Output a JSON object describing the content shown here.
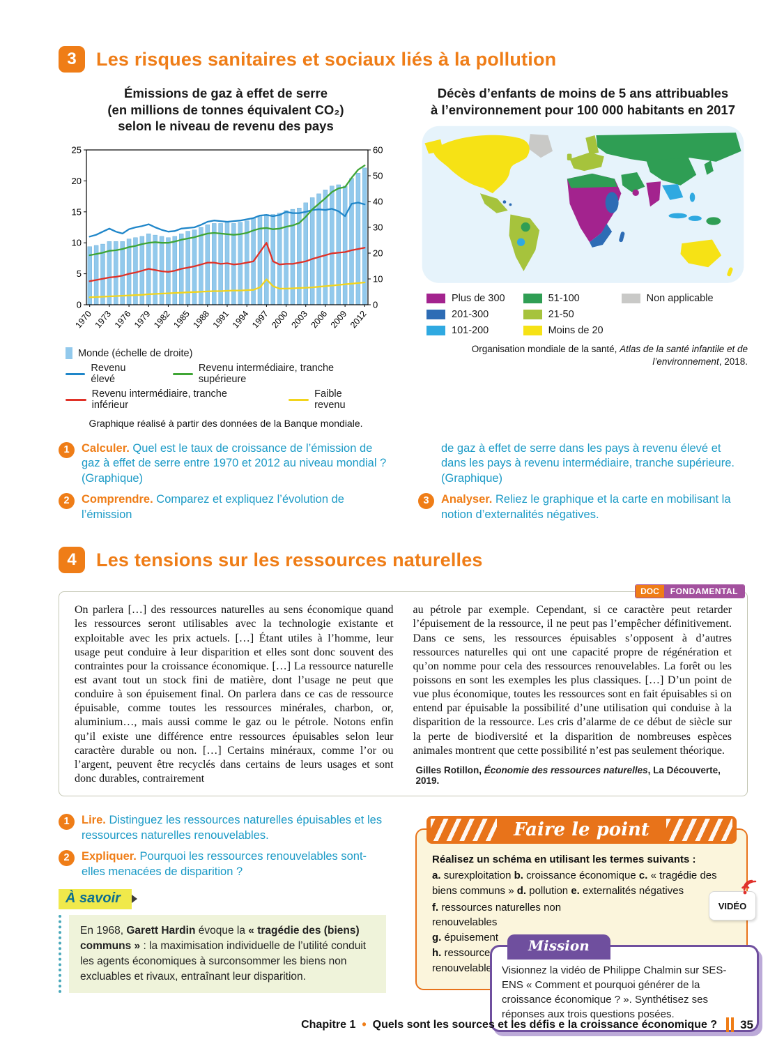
{
  "section3": {
    "badge": "3",
    "title": "Les risques sanitaires et sociaux liés à la pollution",
    "chart": {
      "title_line1": "Émissions de gaz à effet de serre",
      "title_line2": "(en millions de tonnes équivalent CO₂)",
      "title_line3": "selon le niveau de revenu des pays",
      "caption": "Graphique réalisé à partir des données de la Banque mondiale."
    },
    "map": {
      "title_line1": "Décès d’enfants de moins de 5 ans attribuables",
      "title_line2": "à l’environnement pour 100 000 habitants en 2017",
      "legend": [
        {
          "label": "Plus de 300",
          "color": "#a3238e"
        },
        {
          "label": "201-300",
          "color": "#2d6cb5"
        },
        {
          "label": "101-200",
          "color": "#2fa9e1"
        },
        {
          "label": "51-100",
          "color": "#2f9e54"
        },
        {
          "label": "21-50",
          "color": "#a6c33c"
        },
        {
          "label": "Moins de 20",
          "color": "#f6e215"
        },
        {
          "label": "Non applicable",
          "color": "#c9c9c7"
        }
      ],
      "caption_part1": "Organisation mondiale de la santé, ",
      "caption_italic": "Atlas de la santé infantile et de l’environnement",
      "caption_part2": ", 2018."
    },
    "questions": {
      "q1": {
        "n": "1",
        "verb": "Calculer.",
        "text": "Quel est le taux de croissance de l’émission de gaz à effet de serre entre 1970 et 2012 au niveau mondial ? (Graphique)"
      },
      "q2": {
        "n": "2",
        "verb": "Comprendre.",
        "text": "Comparez et expliquez l’évolution de l’émission"
      },
      "q2_continuation": "de gaz à effet de serre dans les pays à revenu élevé et dans les pays à revenu intermédiaire, tranche supérieure. (Graphique)",
      "q3": {
        "n": "3",
        "verb": "Analyser.",
        "text": "Reliez le graphique et la carte en mobilisant la notion d’externalités négatives."
      }
    }
  },
  "section4": {
    "badge": "4",
    "title": "Les tensions sur les ressources naturelles",
    "doc_badge": {
      "doc": "DOC",
      "fondamental": "FONDAMENTAL"
    },
    "doc": {
      "col1": "On parlera […] des ressources naturelles au sens économique quand les ressources seront utilisables avec la technologie existante et exploitable avec les prix actuels. […] Étant utiles à l’homme, leur usage peut conduire à leur disparition et elles sont donc souvent des contraintes pour la croissance économique. […] La ressource naturelle est avant tout un stock fini de matière, dont l’usage ne peut que conduire à son épuisement final. On parlera dans ce cas de ressource épuisable, comme toutes les ressources minérales, charbon, or, aluminium…, mais aussi comme le gaz ou le pétrole. Notons enfin qu’il existe une différence entre ressources épuisables selon leur caractère durable ou non. […] Certains minéraux, comme l’or ou l’argent, peuvent être recyclés dans certains de leurs usages et sont donc durables, contrairement",
      "col2": "au pétrole par exemple. Cependant, si ce caractère peut retarder l’épuisement de la ressource, il ne peut pas l’empêcher définitivement. Dans ce sens, les ressources épuisables s’opposent à d’autres ressources naturelles qui ont une capacité propre de régénération et qu’on nomme pour cela des ressources renouvelables. La forêt ou les poissons en sont les exemples les plus classiques. […] D’un point de vue plus économique, toutes les ressources sont en fait épuisables si on entend par épuisable la possibilité d’une utilisation qui conduise à la disparition de la ressource. Les cris d’alarme de ce début de siècle sur la perte de biodiversité et la disparition de nombreuses espèces animales montrent que cette possibilité n’est pas seulement théorique.",
      "source_author": "Gilles Rotillon, ",
      "source_title": "Économie des ressources naturelles",
      "source_end": ", La Découverte, 2019."
    },
    "questions": {
      "q1": {
        "n": "1",
        "verb": "Lire.",
        "text": "Distinguez les ressources naturelles épuisables et les ressources naturelles renouvelables."
      },
      "q2": {
        "n": "2",
        "verb": "Expliquer.",
        "text": "Pourquoi les ressources renouvelables sont-elles menacées de disparition ?"
      }
    },
    "a_savoir": {
      "title": "À savoir",
      "seg1": "En 1968, ",
      "bold1": "Garett Hardin",
      "seg2": " évoque la ",
      "bold2": "« tragédie des (biens) communs »",
      "seg3": " : la maximisation individuelle de l’utilité conduit les agents économiques à surconsommer les biens non excluables et rivaux, entraînant leur disparition."
    },
    "faire_le_point": {
      "header": "Faire le point",
      "intro": "Réalisez un schéma en utilisant les termes suivants :",
      "terms_inline": [
        {
          "k": "a.",
          "t": "surexploitation"
        },
        {
          "k": "b.",
          "t": "croissance économique"
        },
        {
          "k": "c.",
          "t": "« tragédie des biens communs »"
        },
        {
          "k": "d.",
          "t": "pollution"
        },
        {
          "k": "e.",
          "t": "externalités négatives"
        }
      ],
      "terms_stacked": [
        {
          "k": "f.",
          "t": "ressources naturelles non renouvelables"
        },
        {
          "k": "g.",
          "t": "épuisement"
        },
        {
          "k": "h.",
          "t": "ressources renouvelables."
        }
      ]
    },
    "mission": {
      "badge": "Mission",
      "text": "Visionnez la vidéo de Philippe Chalmin sur SES-ENS « Comment et pourquoi générer de la croissance économique ? ». Synthétisez ses réponses aux trois questions posées.",
      "video_label": "VIDÉO"
    }
  },
  "footer": {
    "chapter": "Chapitre 1",
    "dot": "•",
    "title": "Quels sont les sources et les défis  e la croissance économique ?",
    "page": "35"
  },
  "chart_data": {
    "type": "bar+line",
    "title": "Émissions de gaz à effet de serre (en millions de tonnes équivalent CO₂) selon le niveau de revenu des pays",
    "x": [
      1970,
      1971,
      1972,
      1973,
      1974,
      1975,
      1976,
      1977,
      1978,
      1979,
      1980,
      1981,
      1982,
      1983,
      1984,
      1985,
      1986,
      1987,
      1988,
      1989,
      1990,
      1991,
      1992,
      1993,
      1994,
      1995,
      1996,
      1997,
      1998,
      1999,
      2000,
      2001,
      2002,
      2003,
      2004,
      2005,
      2006,
      2007,
      2008,
      2009,
      2010,
      2011,
      2012
    ],
    "x_tick_years": [
      1970,
      1973,
      1976,
      1979,
      1982,
      1985,
      1988,
      1991,
      1994,
      1997,
      2000,
      2003,
      2006,
      2009,
      2012
    ],
    "left_axis": {
      "range": [
        0,
        25
      ],
      "ticks": [
        0,
        5,
        10,
        15,
        20,
        25
      ]
    },
    "right_axis": {
      "range": [
        0,
        60
      ],
      "ticks": [
        0,
        10,
        20,
        30,
        40,
        50,
        60
      ]
    },
    "bars": {
      "name": "Monde (échelle de droite)",
      "axis": "right",
      "color": "#92c9ec",
      "values": [
        22.5,
        23,
        23.5,
        24.5,
        24.5,
        24.5,
        25.5,
        26,
        26.5,
        27.5,
        27,
        26.5,
        26,
        26.5,
        27.5,
        28.5,
        29,
        30,
        31,
        31.5,
        31.5,
        32,
        31.5,
        32,
        32.5,
        33.5,
        34.5,
        35,
        35,
        35.5,
        36.5,
        37,
        37.5,
        39.5,
        41.5,
        43,
        44.5,
        46,
        46.5,
        46,
        49,
        51,
        53
      ]
    },
    "series": [
      {
        "name": "Revenu élevé",
        "color": "#1f86c9",
        "values": [
          11,
          11.3,
          11.8,
          12.3,
          11.8,
          11.5,
          12.2,
          12.5,
          12.7,
          13,
          12.5,
          12.1,
          11.8,
          11.9,
          12.3,
          12.4,
          12.5,
          12.9,
          13.4,
          13.6,
          13.5,
          13.4,
          13.5,
          13.6,
          13.8,
          14,
          14.4,
          14.5,
          14.3,
          14.5,
          15,
          14.8,
          14.8,
          15,
          15.3,
          15.4,
          15.3,
          15.5,
          15.1,
          14.3,
          16.3,
          16.5,
          16.2
        ]
      },
      {
        "name": "Revenu intermédiaire, tranche supérieure",
        "color": "#3fa535",
        "values": [
          8,
          8.2,
          8.4,
          8.7,
          8.8,
          9,
          9.3,
          9.5,
          9.8,
          10,
          10.1,
          10,
          10,
          10.2,
          10.5,
          10.7,
          10.9,
          11.2,
          11.5,
          11.6,
          11.5,
          11.4,
          11.3,
          11.4,
          11.6,
          12,
          12.3,
          12.4,
          12.2,
          12.3,
          12.6,
          12.8,
          13.2,
          14.2,
          15.4,
          16.3,
          17.2,
          18.2,
          18.8,
          19,
          20.5,
          21.8,
          22.5
        ]
      },
      {
        "name": "Revenu intermédiaire, tranche inférieur",
        "color": "#e03127",
        "values": [
          3.8,
          4,
          4.2,
          4.4,
          4.5,
          4.7,
          5,
          5.2,
          5.5,
          5.8,
          5.6,
          5.4,
          5.3,
          5.5,
          5.8,
          6,
          6.2,
          6.5,
          6.8,
          6.8,
          6.6,
          6.7,
          6.5,
          6.6,
          6.8,
          7,
          8.5,
          10,
          7,
          6.5,
          6.6,
          6.6,
          6.8,
          7,
          7.4,
          7.7,
          8,
          8.3,
          8.4,
          8.5,
          8.8,
          9,
          9.2
        ]
      },
      {
        "name": "Faible revenu",
        "color": "#f2d41c",
        "values": [
          1.2,
          1.25,
          1.3,
          1.35,
          1.4,
          1.45,
          1.5,
          1.55,
          1.6,
          1.7,
          1.75,
          1.8,
          1.85,
          1.9,
          1.95,
          2,
          2.05,
          2.1,
          2.15,
          2.2,
          2.2,
          2.25,
          2.3,
          2.3,
          2.35,
          2.4,
          2.8,
          4.1,
          3,
          2.6,
          2.6,
          2.65,
          2.7,
          2.75,
          2.8,
          2.9,
          3,
          3.1,
          3.2,
          3.3,
          3.4,
          3.5,
          3.6
        ]
      }
    ]
  }
}
